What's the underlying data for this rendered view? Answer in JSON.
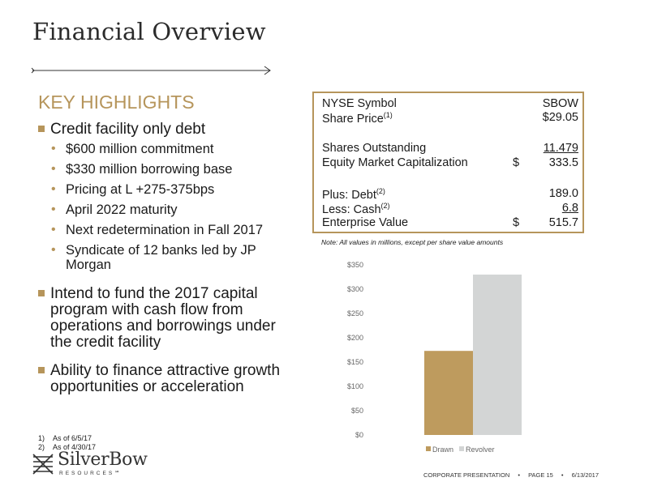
{
  "title": "Financial Overview",
  "section_heading": "KEY HIGHLIGHTS",
  "bullets": [
    {
      "text": "Credit facility only debt",
      "sub": [
        "$600 million commitment",
        "$330 million borrowing base",
        "Pricing at L +275-375bps",
        "April 2022 maturity",
        "Next redetermination in Fall 2017",
        "Syndicate of 12 banks led by JP Morgan"
      ]
    },
    {
      "text": "Intend to fund the 2017 capital program with cash flow from operations and borrowings under the credit facility"
    },
    {
      "text": "Ability to finance attractive growth opportunities or acceleration"
    }
  ],
  "footnotes": [
    {
      "num": "1)",
      "text": "As of 6/5/17"
    },
    {
      "num": "2)",
      "text": "As of 4/30/17"
    }
  ],
  "table": {
    "rows": [
      {
        "label": "NYSE Symbol",
        "sup": "",
        "currency": "",
        "value": "SBOW"
      },
      {
        "label": "Share Price",
        "sup": "(1)",
        "currency": "",
        "value": "$29.05"
      },
      {
        "label": "Shares Outstanding",
        "sup": "",
        "currency": "",
        "value": "11.479"
      },
      {
        "label": "Equity Market Capitalization",
        "sup": "",
        "currency": "$",
        "value": "333.5"
      },
      {
        "label": "Plus: Debt",
        "sup": "(2)",
        "currency": "",
        "value": "189.0"
      },
      {
        "label": "Less: Cash",
        "sup": "(2)",
        "currency": "",
        "value": "6.8"
      },
      {
        "label": "Enterprise Value",
        "sup": "",
        "currency": "$",
        "value": "515.7"
      }
    ],
    "note": "Note: All values in millions, except per share value amounts"
  },
  "chart_data": {
    "type": "bar",
    "categories": [
      ""
    ],
    "series": [
      {
        "name": "Drawn",
        "values": [
          173
        ],
        "color": "#be9b5e"
      },
      {
        "name": "Revolver",
        "values": [
          330
        ],
        "color": "#d3d5d5"
      }
    ],
    "ylim": [
      0,
      350
    ],
    "yticks": [
      "$0",
      "$50",
      "$100",
      "$150",
      "$200",
      "$250",
      "$300",
      "$350"
    ],
    "legend_position": "bottom",
    "grid": false
  },
  "logo": {
    "name": "SilverBow",
    "sub": "RESOURCES℠"
  },
  "footer": {
    "label": "CORPORATE PRESENTATION",
    "page": "PAGE 15",
    "date": "6/13/2017"
  },
  "colors": {
    "accent": "#b6955b"
  }
}
